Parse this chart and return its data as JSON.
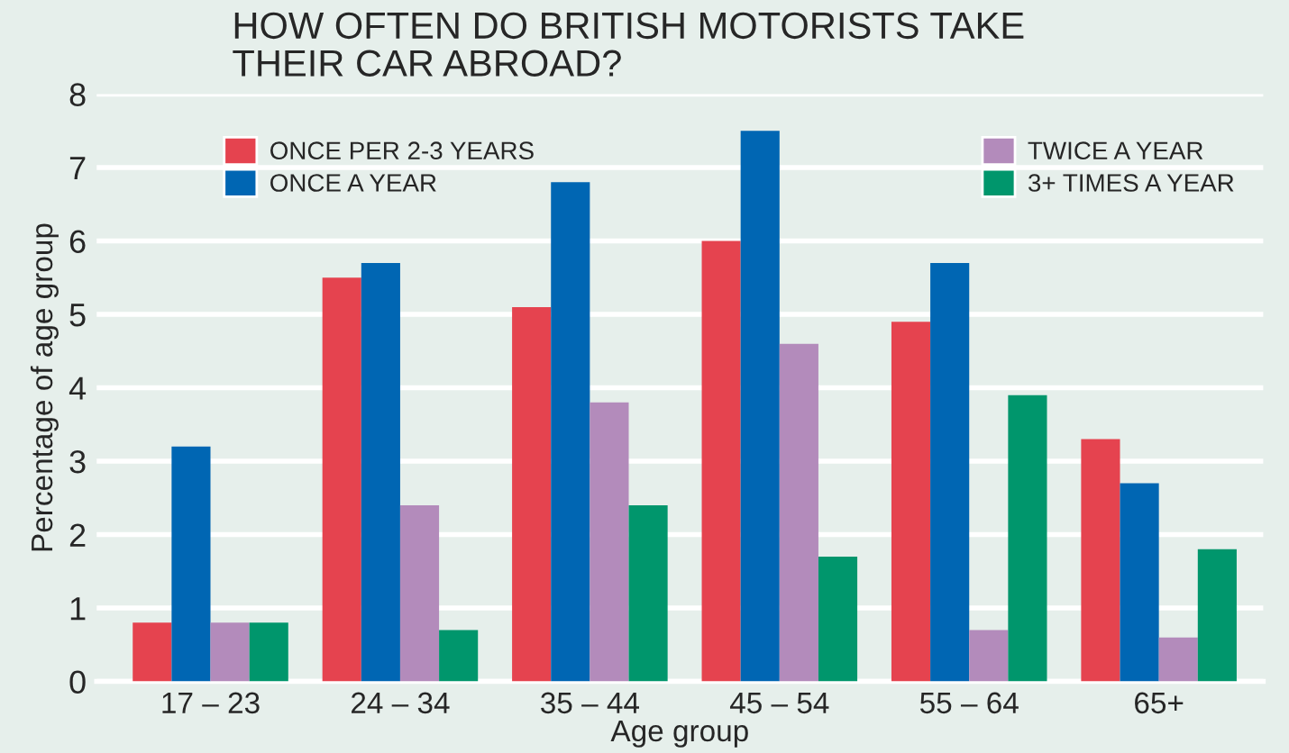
{
  "chart_data": {
    "type": "bar",
    "title": "HOW OFTEN DO BRITISH MOTORISTS TAKE\nTHEIR CAR ABROAD?",
    "xlabel": "Age group",
    "ylabel": "Percentage of age group",
    "categories": [
      "17 – 23",
      "24 – 34",
      "35 – 44",
      "45 – 54",
      "55 – 64",
      "65+"
    ],
    "series": [
      {
        "name": "ONCE PER 2-3 YEARS",
        "color": "#e5434f",
        "values": [
          0.8,
          5.5,
          5.1,
          6.0,
          4.9,
          3.3
        ]
      },
      {
        "name": "ONCE A YEAR",
        "color": "#0066b3",
        "values": [
          3.2,
          5.7,
          6.8,
          7.5,
          5.7,
          2.7
        ]
      },
      {
        "name": "TWICE A YEAR",
        "color": "#b38bbb",
        "values": [
          0.8,
          2.4,
          3.8,
          4.6,
          0.7,
          0.6
        ]
      },
      {
        "name": "3+ TIMES A YEAR",
        "color": "#00966c",
        "values": [
          0.8,
          0.7,
          2.4,
          1.7,
          3.9,
          1.8
        ]
      }
    ],
    "ylim": [
      0,
      8
    ],
    "yticks": [
      0,
      1,
      2,
      3,
      4,
      5,
      6,
      7,
      8
    ],
    "grid": "y",
    "legend": "top"
  }
}
